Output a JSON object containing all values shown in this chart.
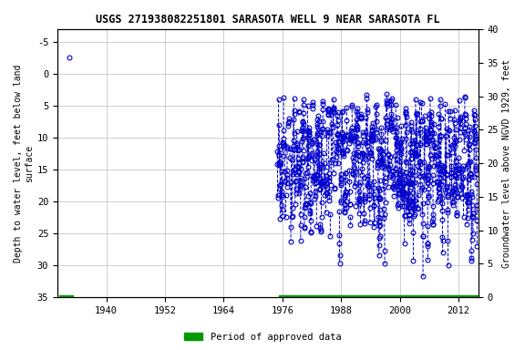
{
  "title": "USGS 271938082251801 SARASOTA WELL 9 NEAR SARASOTA FL",
  "title_fontsize": 8.5,
  "ylabel_left": "Depth to water level, feet below land\nsurface",
  "ylabel_right": "Groundwater level above NGVD 1929, feet",
  "ylim_left": [
    35,
    -7
  ],
  "ylim_right": [
    0,
    40
  ],
  "xlim": [
    1930,
    2016
  ],
  "xticks": [
    1940,
    1952,
    1964,
    1976,
    1988,
    2000,
    2012
  ],
  "yticks_left": [
    -5,
    0,
    5,
    10,
    15,
    20,
    25,
    30,
    35
  ],
  "yticks_right": [
    0,
    5,
    10,
    15,
    20,
    25,
    30,
    35,
    40
  ],
  "grid_color": "#c8c8c8",
  "plot_bg": "#ffffff",
  "fig_bg": "#ffffff",
  "data_color": "#0000cc",
  "marker_size": 3.5,
  "line_width": 0.7,
  "legend_label": "Period of approved data",
  "legend_color": "#009900",
  "early_x": 1932.5,
  "early_y": -2.5,
  "approved_early_x0": 1930.3,
  "approved_early_x1": 1933.2,
  "approved_main_x0": 1975.2,
  "approved_main_x1": 2015.8,
  "approved_bar_y": 35.0,
  "approved_bar_thickness": 0.55,
  "figsize": [
    5.76,
    3.84
  ],
  "dpi": 100
}
